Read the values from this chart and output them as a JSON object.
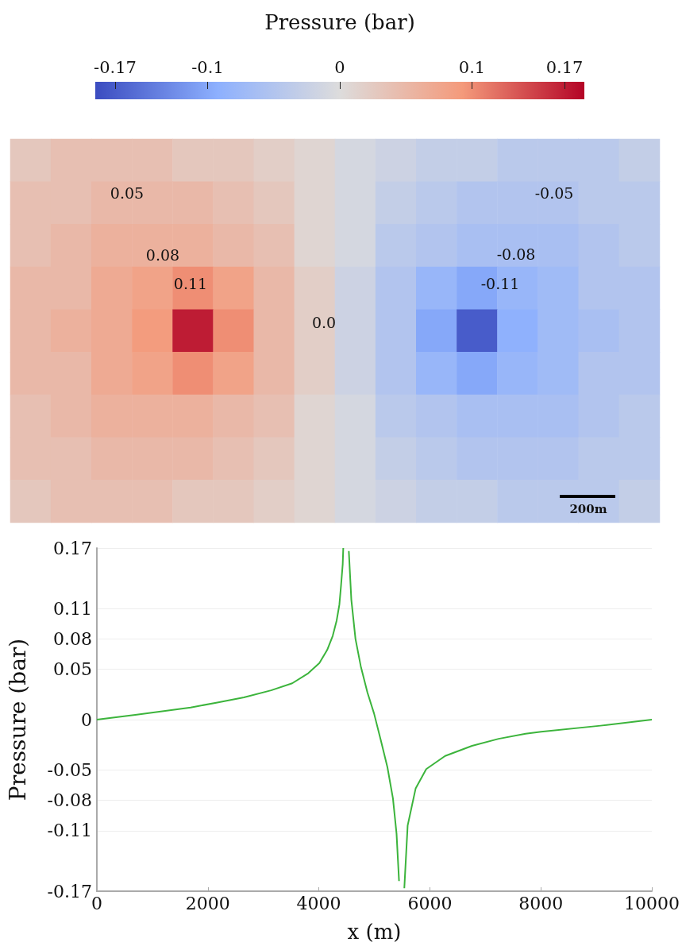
{
  "chart_data": [
    {
      "type": "heatmap",
      "clabel": "Pressure (bar)",
      "clim": [
        -0.185,
        0.185
      ],
      "cticks": [
        -0.17,
        -0.1,
        0,
        0.1,
        0.17
      ],
      "tick_labels": false,
      "categories": [
        null,
        null,
        null,
        null,
        null,
        null,
        null,
        null,
        null,
        null,
        null,
        null,
        null,
        null,
        null,
        null
      ],
      "y_categories": [
        null,
        null,
        null,
        null,
        null,
        null,
        null,
        null,
        null
      ],
      "cells": [
        [
          0.03,
          0.04,
          0.04,
          0.04,
          0.03,
          0.03,
          0.02,
          0.01,
          -0.01,
          -0.02,
          -0.03,
          -0.03,
          -0.04,
          -0.04,
          -0.04,
          -0.03
        ],
        [
          0.04,
          0.04,
          0.05,
          0.05,
          0.05,
          0.04,
          0.03,
          0.01,
          -0.01,
          -0.03,
          -0.04,
          -0.05,
          -0.05,
          -0.05,
          -0.04,
          -0.04
        ],
        [
          0.04,
          0.05,
          0.06,
          0.06,
          0.06,
          0.05,
          0.04,
          0.01,
          -0.01,
          -0.04,
          -0.05,
          -0.06,
          -0.06,
          -0.06,
          -0.05,
          -0.04
        ],
        [
          0.05,
          0.05,
          0.07,
          0.08,
          0.1,
          0.08,
          0.05,
          0.02,
          -0.02,
          -0.05,
          -0.08,
          -0.1,
          -0.08,
          -0.07,
          -0.05,
          -0.05
        ],
        [
          0.05,
          0.06,
          0.07,
          0.09,
          0.17,
          0.1,
          0.05,
          0.02,
          -0.02,
          -0.05,
          -0.1,
          -0.17,
          -0.09,
          -0.07,
          -0.06,
          -0.05
        ],
        [
          0.05,
          0.05,
          0.07,
          0.08,
          0.1,
          0.08,
          0.05,
          0.02,
          -0.02,
          -0.05,
          -0.08,
          -0.1,
          -0.08,
          -0.07,
          -0.05,
          -0.05
        ],
        [
          0.04,
          0.05,
          0.06,
          0.06,
          0.06,
          0.05,
          0.04,
          0.01,
          -0.01,
          -0.04,
          -0.05,
          -0.06,
          -0.06,
          -0.06,
          -0.05,
          -0.04
        ],
        [
          0.04,
          0.04,
          0.05,
          0.05,
          0.05,
          0.04,
          0.03,
          0.01,
          -0.01,
          -0.03,
          -0.04,
          -0.05,
          -0.05,
          -0.05,
          -0.04,
          -0.04
        ],
        [
          0.03,
          0.04,
          0.04,
          0.04,
          0.03,
          0.03,
          0.02,
          0.01,
          -0.01,
          -0.02,
          -0.03,
          -0.03,
          -0.04,
          -0.04,
          -0.04,
          -0.03
        ]
      ],
      "annotations": [
        "0.05",
        "0.08",
        "0.11",
        "0.0",
        "-0.05",
        "-0.08",
        "-0.11",
        "200m"
      ]
    },
    {
      "type": "line",
      "xlabel": "x (m)",
      "ylabel": "Pressure (bar)",
      "xlim": [
        0,
        10000
      ],
      "xticks": [
        0,
        2000,
        4000,
        6000,
        8000,
        10000
      ],
      "ylim": [
        -0.17,
        0.17
      ],
      "yticks": [
        -0.17,
        -0.11,
        -0.08,
        -0.05,
        0,
        0.05,
        0.08,
        0.11,
        0.17
      ],
      "grid": "y",
      "marker": "none",
      "series": [
        {
          "color": "#3cb43c",
          "x": [
            0,
            720,
            1690,
            2170,
            2650,
            3140,
            3520,
            3810,
            4010,
            4150,
            4250,
            4320,
            4370,
            4400,
            4430,
            4440,
            4490,
            4540,
            4585,
            4660,
            4755,
            4875,
            4995,
            5115,
            5235,
            5335,
            5400,
            5445,
            5490,
            5540,
            5600,
            5745,
            5935,
            6275,
            6760,
            7240,
            7725,
            8005,
            9075,
            10000
          ],
          "values": [
            0,
            0.005,
            0.012,
            0.017,
            0.022,
            0.029,
            0.036,
            0.046,
            0.056,
            0.069,
            0.083,
            0.098,
            0.114,
            0.133,
            0.154,
            0.17,
            null,
            0.167,
            0.119,
            0.08,
            0.053,
            0.027,
            0.006,
            -0.02,
            -0.047,
            -0.078,
            -0.113,
            -0.16,
            null,
            -0.167,
            -0.105,
            -0.068,
            -0.049,
            -0.036,
            -0.026,
            -0.019,
            -0.014,
            -0.012,
            -0.006,
            0
          ]
        }
      ]
    }
  ]
}
